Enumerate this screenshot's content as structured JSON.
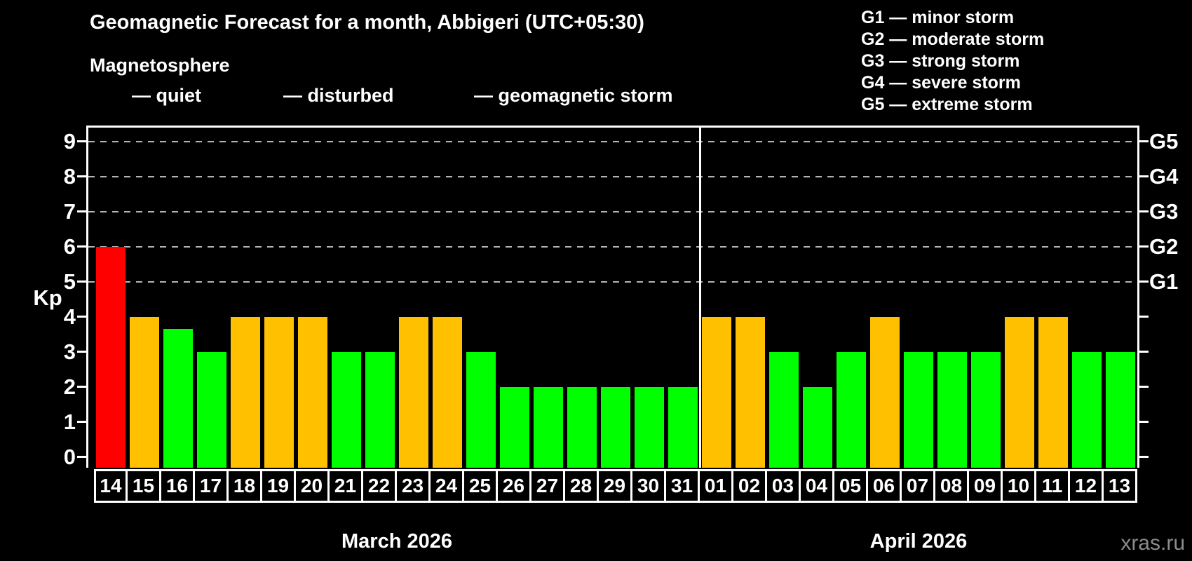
{
  "title": "Geomagnetic Forecast for a month, Abbigeri (UTC+05:30)",
  "subtitle": "Magnetosphere",
  "watermark": "xras.ru",
  "colors": {
    "quiet": "#00ff00",
    "disturbed": "#ffc000",
    "storm": "#ff0000",
    "background": "#000000",
    "grid": "#b4b4b4",
    "text": "#ffffff"
  },
  "legend": {
    "items": [
      {
        "key": "quiet",
        "label": "— quiet"
      },
      {
        "key": "disturbed",
        "label": "— disturbed"
      },
      {
        "key": "storm",
        "label": "— geomagnetic storm"
      }
    ]
  },
  "g_legend": [
    "G1 — minor storm",
    "G2 — moderate storm",
    "G3 — strong storm",
    "G4 — severe storm",
    "G5 — extreme storm"
  ],
  "axis": {
    "y_label": "Kp",
    "y_ticks": [
      0,
      1,
      2,
      3,
      4,
      5,
      6,
      7,
      8,
      9
    ],
    "gridlines": [
      5,
      6,
      7,
      8,
      9
    ],
    "g_ticks": [
      {
        "kp": 5,
        "label": "G1"
      },
      {
        "kp": 6,
        "label": "G2"
      },
      {
        "kp": 7,
        "label": "G3"
      },
      {
        "kp": 8,
        "label": "G4"
      },
      {
        "kp": 9,
        "label": "G5"
      }
    ]
  },
  "months": [
    {
      "label": "March 2026",
      "days": [
        {
          "day": "14",
          "kp": 6,
          "status": "storm"
        },
        {
          "day": "15",
          "kp": 4,
          "status": "disturbed"
        },
        {
          "day": "16",
          "kp": 3.67,
          "status": "quiet"
        },
        {
          "day": "17",
          "kp": 3,
          "status": "quiet"
        },
        {
          "day": "18",
          "kp": 4,
          "status": "disturbed"
        },
        {
          "day": "19",
          "kp": 4,
          "status": "disturbed"
        },
        {
          "day": "20",
          "kp": 4,
          "status": "disturbed"
        },
        {
          "day": "21",
          "kp": 3,
          "status": "quiet"
        },
        {
          "day": "22",
          "kp": 3,
          "status": "quiet"
        },
        {
          "day": "23",
          "kp": 4,
          "status": "disturbed"
        },
        {
          "day": "24",
          "kp": 4,
          "status": "disturbed"
        },
        {
          "day": "25",
          "kp": 3,
          "status": "quiet"
        },
        {
          "day": "26",
          "kp": 2,
          "status": "quiet"
        },
        {
          "day": "27",
          "kp": 2,
          "status": "quiet"
        },
        {
          "day": "28",
          "kp": 2,
          "status": "quiet"
        },
        {
          "day": "29",
          "kp": 2,
          "status": "quiet"
        },
        {
          "day": "30",
          "kp": 2,
          "status": "quiet"
        },
        {
          "day": "31",
          "kp": 2,
          "status": "quiet"
        }
      ]
    },
    {
      "label": "April 2026",
      "days": [
        {
          "day": "01",
          "kp": 4,
          "status": "disturbed"
        },
        {
          "day": "02",
          "kp": 4,
          "status": "disturbed"
        },
        {
          "day": "03",
          "kp": 3,
          "status": "quiet"
        },
        {
          "day": "04",
          "kp": 2,
          "status": "quiet"
        },
        {
          "day": "05",
          "kp": 3,
          "status": "quiet"
        },
        {
          "day": "06",
          "kp": 4,
          "status": "disturbed"
        },
        {
          "day": "07",
          "kp": 3,
          "status": "quiet"
        },
        {
          "day": "08",
          "kp": 3,
          "status": "quiet"
        },
        {
          "day": "09",
          "kp": 3,
          "status": "quiet"
        },
        {
          "day": "10",
          "kp": 4,
          "status": "disturbed"
        },
        {
          "day": "11",
          "kp": 4,
          "status": "disturbed"
        },
        {
          "day": "12",
          "kp": 3,
          "status": "quiet"
        },
        {
          "day": "13",
          "kp": 3,
          "status": "quiet"
        }
      ]
    }
  ],
  "chart_data": {
    "type": "bar",
    "title": "Geomagnetic Forecast for a month, Abbigeri (UTC+05:30)",
    "xlabel": "",
    "ylabel": "Kp",
    "ylim": [
      0,
      9.5
    ],
    "grid": "dashed horizontal lines at Kp 5-9 (G1-G5)",
    "legend_position": "top-left",
    "right_axis": {
      "G1": 5,
      "G2": 6,
      "G3": 7,
      "G4": 8,
      "G5": 9
    },
    "month_groups": [
      {
        "label": "March 2026",
        "count": 18
      },
      {
        "label": "April 2026",
        "count": 13
      }
    ],
    "categories": [
      "Mar 14",
      "Mar 15",
      "Mar 16",
      "Mar 17",
      "Mar 18",
      "Mar 19",
      "Mar 20",
      "Mar 21",
      "Mar 22",
      "Mar 23",
      "Mar 24",
      "Mar 25",
      "Mar 26",
      "Mar 27",
      "Mar 28",
      "Mar 29",
      "Mar 30",
      "Mar 31",
      "Apr 01",
      "Apr 02",
      "Apr 03",
      "Apr 04",
      "Apr 05",
      "Apr 06",
      "Apr 07",
      "Apr 08",
      "Apr 09",
      "Apr 10",
      "Apr 11",
      "Apr 12",
      "Apr 13"
    ],
    "values": [
      6,
      4,
      3.67,
      3,
      4,
      4,
      4,
      3,
      3,
      4,
      4,
      3,
      2,
      2,
      2,
      2,
      2,
      2,
      4,
      4,
      3,
      2,
      3,
      4,
      3,
      3,
      3,
      4,
      4,
      3,
      3
    ],
    "statuses": [
      "storm",
      "disturbed",
      "quiet",
      "quiet",
      "disturbed",
      "disturbed",
      "disturbed",
      "quiet",
      "quiet",
      "disturbed",
      "disturbed",
      "quiet",
      "quiet",
      "quiet",
      "quiet",
      "quiet",
      "quiet",
      "quiet",
      "disturbed",
      "disturbed",
      "quiet",
      "quiet",
      "quiet",
      "disturbed",
      "quiet",
      "quiet",
      "quiet",
      "disturbed",
      "disturbed",
      "quiet",
      "quiet"
    ]
  }
}
